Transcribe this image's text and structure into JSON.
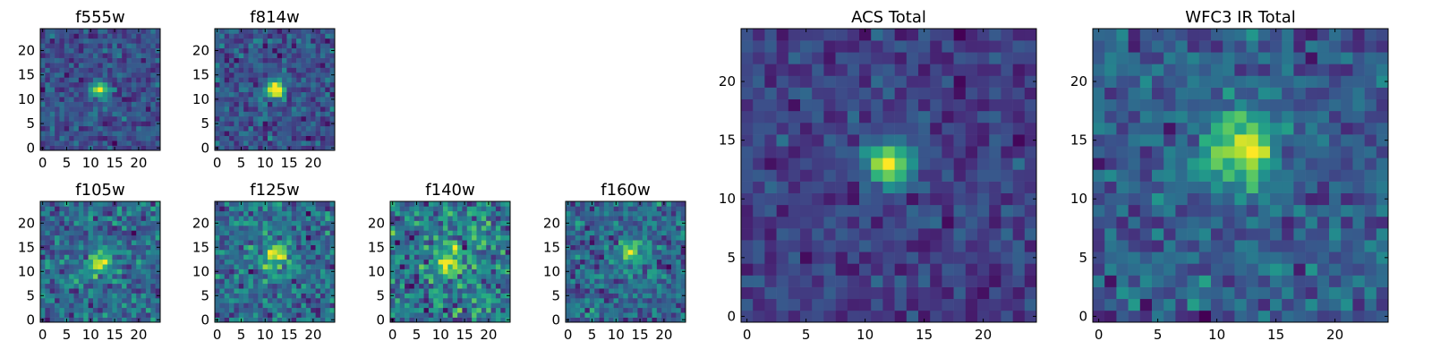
{
  "chart_data": [
    {
      "type": "heatmap",
      "title": "f555w",
      "grid": 25,
      "xlim": [
        -0.5,
        24.5
      ],
      "ylim": [
        -0.5,
        24.5
      ],
      "x_ticks": [
        "0",
        "5",
        "10",
        "15",
        "20"
      ],
      "y_ticks": [
        "0",
        "5",
        "10",
        "15",
        "20"
      ],
      "colormap": "viridis",
      "blob": {
        "x": 12,
        "y": 12,
        "sigma": 1.2,
        "amp": 0.7
      },
      "noise_seed": 11,
      "noise_amp": 0.55
    },
    {
      "type": "heatmap",
      "title": "f814w",
      "grid": 25,
      "xlim": [
        -0.5,
        24.5
      ],
      "ylim": [
        -0.5,
        24.5
      ],
      "x_ticks": [
        "0",
        "5",
        "10",
        "15",
        "20"
      ],
      "y_ticks": [
        "0",
        "5",
        "10",
        "15",
        "20"
      ],
      "colormap": "viridis",
      "blob": {
        "x": 12,
        "y": 12,
        "sigma": 1.3,
        "amp": 0.75
      },
      "noise_seed": 23,
      "noise_amp": 0.55
    },
    {
      "type": "heatmap",
      "title": "f105w",
      "grid": 25,
      "xlim": [
        -0.5,
        24.5
      ],
      "ylim": [
        -0.5,
        24.5
      ],
      "x_ticks": [
        "0",
        "5",
        "10",
        "15",
        "20"
      ],
      "y_ticks": [
        "0",
        "5",
        "10",
        "15",
        "20"
      ],
      "colormap": "viridis",
      "blob": {
        "x": 12,
        "y": 12,
        "sigma": 2.0,
        "amp": 0.35
      },
      "noise_seed": 37,
      "noise_amp": 0.6
    },
    {
      "type": "heatmap",
      "title": "f125w",
      "grid": 25,
      "xlim": [
        -0.5,
        24.5
      ],
      "ylim": [
        -0.5,
        24.5
      ],
      "x_ticks": [
        "0",
        "5",
        "10",
        "15",
        "20"
      ],
      "y_ticks": [
        "0",
        "5",
        "10",
        "15",
        "20"
      ],
      "colormap": "viridis",
      "blob": {
        "x": 12,
        "y": 13,
        "sigma": 2.0,
        "amp": 0.4
      },
      "noise_seed": 41,
      "noise_amp": 0.6
    },
    {
      "type": "heatmap",
      "title": "f140w",
      "grid": 25,
      "xlim": [
        -0.5,
        24.5
      ],
      "ylim": [
        -0.5,
        24.5
      ],
      "x_ticks": [
        "0",
        "5",
        "10",
        "15",
        "20"
      ],
      "y_ticks": [
        "0",
        "5",
        "10",
        "15",
        "20"
      ],
      "colormap": "viridis",
      "blob": {
        "x": 12,
        "y": 12,
        "sigma": 2.0,
        "amp": 0.35
      },
      "noise_seed": 53,
      "noise_amp": 0.6
    },
    {
      "type": "heatmap",
      "title": "f160w",
      "grid": 25,
      "xlim": [
        -0.5,
        24.5
      ],
      "ylim": [
        -0.5,
        24.5
      ],
      "x_ticks": [
        "0",
        "5",
        "10",
        "15",
        "20"
      ],
      "y_ticks": [
        "0",
        "5",
        "10",
        "15",
        "20"
      ],
      "colormap": "viridis",
      "blob": {
        "x": 13,
        "y": 14,
        "sigma": 2.0,
        "amp": 0.4
      },
      "noise_seed": 67,
      "noise_amp": 0.6
    },
    {
      "type": "heatmap",
      "title": "ACS Total",
      "grid": 25,
      "xlim": [
        -0.5,
        24.5
      ],
      "ylim": [
        -0.5,
        24.5
      ],
      "x_ticks": [
        "0",
        "5",
        "10",
        "15",
        "20"
      ],
      "y_ticks": [
        "0",
        "5",
        "10",
        "15",
        "20"
      ],
      "colormap": "viridis",
      "blob": {
        "x": 12,
        "y": 13,
        "sigma": 1.3,
        "amp": 0.8
      },
      "noise_seed": 79,
      "noise_amp": 0.45
    },
    {
      "type": "heatmap",
      "title": "WFC3 IR Total",
      "grid": 25,
      "xlim": [
        -0.5,
        24.5
      ],
      "ylim": [
        -0.5,
        24.5
      ],
      "x_ticks": [
        "0",
        "5",
        "10",
        "15",
        "20"
      ],
      "y_ticks": [
        "0",
        "5",
        "10",
        "15",
        "20"
      ],
      "colormap": "viridis",
      "blob": {
        "x": 12,
        "y": 14,
        "sigma": 2.0,
        "amp": 0.55
      },
      "noise_seed": 97,
      "noise_amp": 0.5
    }
  ]
}
